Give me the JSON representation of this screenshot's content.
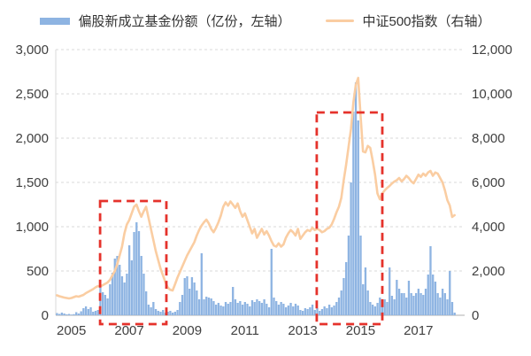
{
  "legend": {
    "series1_label": "偏股新成立基金份额（亿份，左轴）",
    "series2_label": "中证500指数（右轴）"
  },
  "colors": {
    "bar": "#8EB4E2",
    "line": "#FACDA2",
    "highlight": "#E5322B",
    "grid": "#D9D9D9",
    "axis_line": "#BFBFBF",
    "text": "#404040"
  },
  "chart_data": {
    "type": "combo_bar_line",
    "title": "",
    "legend_position": "top",
    "grid": "horizontal-dashed",
    "x": {
      "interval": "monthly",
      "start_year": 2005,
      "tick_labels": [
        "2005",
        "2007",
        "2009",
        "2011",
        "2013",
        "2015",
        "2017"
      ]
    },
    "left_axis": {
      "series": "偏股新成立基金份额（亿份）",
      "range": [
        0,
        3000
      ],
      "tick_step": 500,
      "tick_labels": [
        "3,000",
        "2,500",
        "2,000",
        "1,500",
        "1,000",
        "500",
        "0"
      ]
    },
    "right_axis": {
      "series": "中证500指数",
      "range": [
        0,
        12000
      ],
      "tick_step": 2000,
      "tick_labels": [
        "12,000",
        "10,000",
        "8,000",
        "6,000",
        "4,000",
        "2,000",
        "0"
      ]
    },
    "series": [
      {
        "name": "偏股新成立基金份额（亿份，左轴）",
        "type": "bar",
        "axis": "left",
        "values": [
          25,
          15,
          30,
          20,
          10,
          15,
          8,
          12,
          35,
          20,
          45,
          80,
          100,
          70,
          90,
          40,
          50,
          60,
          320,
          260,
          230,
          190,
          350,
          480,
          640,
          670,
          570,
          440,
          370,
          470,
          790,
          620,
          940,
          1050,
          950,
          670,
          470,
          270,
          120,
          90,
          150,
          70,
          50,
          40,
          60,
          30,
          40,
          50,
          30,
          40,
          60,
          150,
          230,
          420,
          440,
          300,
          430,
          370,
          280,
          180,
          700,
          180,
          210,
          200,
          190,
          160,
          120,
          140,
          110,
          100,
          150,
          130,
          150,
          320,
          180,
          140,
          160,
          120,
          150,
          130,
          100,
          170,
          150,
          180,
          160,
          140,
          180,
          130,
          90,
          750,
          200,
          160,
          120,
          150,
          130,
          90,
          110,
          140,
          100,
          130,
          110,
          60,
          50,
          80,
          70,
          90,
          120,
          60,
          80,
          50,
          70,
          100,
          80,
          120,
          90,
          110,
          150,
          200,
          280,
          420,
          600,
          900,
          1500,
          2300,
          2630,
          2200,
          900,
          350,
          540,
          280,
          150,
          120,
          100,
          140,
          200,
          160,
          180,
          150,
          540,
          220,
          180,
          400,
          300,
          250,
          250,
          200,
          390,
          250,
          220,
          250,
          300,
          250,
          230,
          300,
          460,
          780,
          460,
          380,
          250,
          200,
          300,
          250,
          180,
          500,
          150,
          30
        ]
      },
      {
        "name": "中证500指数（右轴）",
        "type": "line",
        "axis": "right",
        "values": [
          900,
          860,
          830,
          800,
          780,
          760,
          780,
          820,
          860,
          840,
          880,
          920,
          1000,
          1060,
          1120,
          1180,
          1260,
          1320,
          1300,
          1360,
          1420,
          1480,
          1600,
          1800,
          2000,
          2300,
          2700,
          3100,
          3700,
          4100,
          4300,
          4600,
          4900,
          5000,
          4700,
          4450,
          4700,
          4900,
          4400,
          3900,
          3400,
          2900,
          2500,
          2100,
          1800,
          1500,
          1250,
          1150,
          1120,
          1400,
          1700,
          1950,
          2200,
          2450,
          2700,
          2900,
          3100,
          3300,
          3600,
          3850,
          4050,
          4200,
          4320,
          4150,
          3900,
          3750,
          3950,
          4200,
          4500,
          4900,
          5100,
          4950,
          5140,
          5000,
          4850,
          5050,
          4700,
          4450,
          4600,
          4300,
          4000,
          3700,
          3900,
          3500,
          3700,
          3900,
          3650,
          3800,
          3600,
          3350,
          3150,
          3100,
          3250,
          3100,
          3200,
          3500,
          3700,
          3850,
          3750,
          3600,
          3900,
          3450,
          3600,
          3750,
          3850,
          3800,
          3950,
          3850,
          3900,
          3850,
          3750,
          3800,
          3900,
          3950,
          4100,
          4350,
          4650,
          4900,
          5300,
          6100,
          6800,
          7600,
          8400,
          9600,
          10400,
          10720,
          9000,
          7400,
          7360,
          7650,
          7560,
          7000,
          6360,
          5500,
          5240,
          5500,
          5640,
          5750,
          5840,
          5950,
          6040,
          6100,
          6200,
          6050,
          6150,
          6300,
          6200,
          6050,
          5960,
          6150,
          6350,
          6250,
          6400,
          6300,
          6450,
          6520,
          6300,
          6450,
          6400,
          6200,
          6000,
          5640,
          5200,
          4960,
          4440,
          4520
        ]
      }
    ],
    "annotations": [
      {
        "type": "dashed_box",
        "from_month_index": 18.4,
        "to_month_index": 45.9,
        "top_value_left_axis": 1290
      },
      {
        "type": "dashed_box",
        "from_month_index": 108.3,
        "to_month_index": 135.5,
        "top_value_left_axis": 2290
      }
    ]
  }
}
